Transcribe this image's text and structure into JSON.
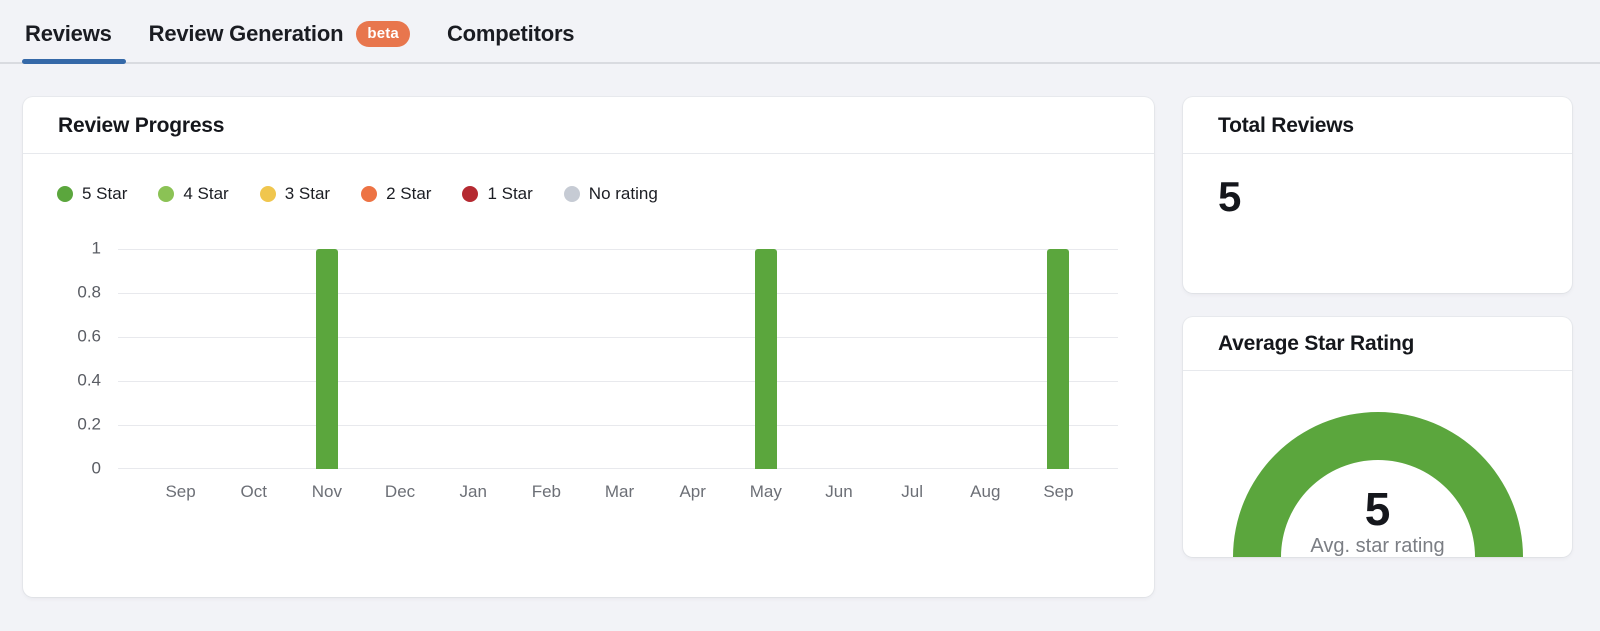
{
  "tabs": {
    "items": [
      {
        "label": "Reviews",
        "active": true
      },
      {
        "label": "Review Generation",
        "active": false,
        "badge": "beta"
      },
      {
        "label": "Competitors",
        "active": false
      }
    ],
    "active_underline_color": "#3569a8",
    "badge_color": "#e8764d"
  },
  "review_progress": {
    "title": "Review Progress"
  },
  "chart_data": {
    "type": "bar",
    "title": "Review Progress",
    "categories": [
      "Sep",
      "Oct",
      "Nov",
      "Dec",
      "Jan",
      "Feb",
      "Mar",
      "Apr",
      "May",
      "Jun",
      "Jul",
      "Aug",
      "Sep"
    ],
    "series": [
      {
        "name": "5 Star",
        "color": "#5ba63d",
        "values": [
          0,
          0,
          1,
          0,
          0,
          0,
          0,
          0,
          1,
          0,
          0,
          0,
          1
        ]
      },
      {
        "name": "4 Star",
        "color": "#8bc255",
        "values": [
          0,
          0,
          0,
          0,
          0,
          0,
          0,
          0,
          0,
          0,
          0,
          0,
          0
        ]
      },
      {
        "name": "3 Star",
        "color": "#f0c64e",
        "values": [
          0,
          0,
          0,
          0,
          0,
          0,
          0,
          0,
          0,
          0,
          0,
          0,
          0
        ]
      },
      {
        "name": "2 Star",
        "color": "#ed7344",
        "values": [
          0,
          0,
          0,
          0,
          0,
          0,
          0,
          0,
          0,
          0,
          0,
          0,
          0
        ]
      },
      {
        "name": "1 Star",
        "color": "#b52a31",
        "values": [
          0,
          0,
          0,
          0,
          0,
          0,
          0,
          0,
          0,
          0,
          0,
          0,
          0
        ]
      },
      {
        "name": "No rating",
        "color": "#c6cbd4",
        "values": [
          0,
          0,
          0,
          0,
          0,
          0,
          0,
          0,
          0,
          0,
          0,
          0,
          0
        ]
      }
    ],
    "xlabel": "",
    "ylabel": "",
    "ylim": [
      0,
      1
    ],
    "yticks": [
      0,
      0.2,
      0.4,
      0.6,
      0.8,
      1
    ],
    "grid": true,
    "legend_position": "top"
  },
  "total_reviews": {
    "title": "Total Reviews",
    "value": "5"
  },
  "average_star_rating": {
    "title": "Average Star Rating",
    "value": "5",
    "caption": "Avg. star rating",
    "gauge_color": "#5ba63d",
    "gauge_max": 5
  }
}
